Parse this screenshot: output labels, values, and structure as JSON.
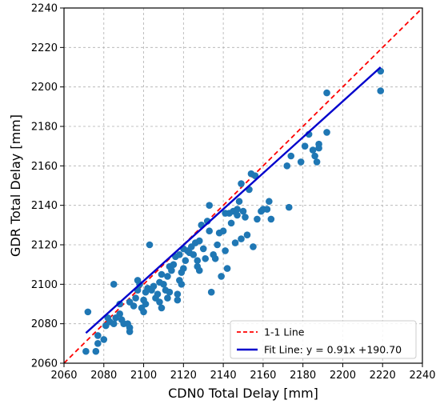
{
  "chart_data": {
    "type": "scatter",
    "title": "",
    "xlabel": "CDN0 Total Delay [mm]",
    "ylabel": "GDR Total Delay [mm]",
    "xlim": [
      2060,
      2240
    ],
    "ylim": [
      2060,
      2240
    ],
    "xticks": [
      2060,
      2080,
      2100,
      2120,
      2140,
      2160,
      2180,
      2200,
      2220,
      2240
    ],
    "yticks": [
      2060,
      2080,
      2100,
      2120,
      2140,
      2160,
      2180,
      2200,
      2220,
      2240
    ],
    "grid": true,
    "legend_position": "bottom-right",
    "colors": {
      "points": "#1f77b4",
      "one_to_one": "#ff0000",
      "fit": "#0000cc"
    },
    "one_to_one_label": "1-1 Line",
    "fit": {
      "label": "Fit Line: y = 0.91x +190.70",
      "slope": 0.91,
      "intercept": 190.7,
      "x_range": [
        2071,
        2219
      ]
    },
    "points": [
      [
        2071,
        2066
      ],
      [
        2072,
        2086
      ],
      [
        2076,
        2066
      ],
      [
        2077,
        2070
      ],
      [
        2077,
        2074
      ],
      [
        2080,
        2072
      ],
      [
        2081,
        2079
      ],
      [
        2082,
        2083
      ],
      [
        2083,
        2081
      ],
      [
        2085,
        2080
      ],
      [
        2085,
        2100
      ],
      [
        2086,
        2083
      ],
      [
        2088,
        2085
      ],
      [
        2088,
        2090
      ],
      [
        2089,
        2082
      ],
      [
        2090,
        2080
      ],
      [
        2092,
        2080
      ],
      [
        2093,
        2078
      ],
      [
        2093,
        2076
      ],
      [
        2093,
        2091
      ],
      [
        2095,
        2089
      ],
      [
        2096,
        2093
      ],
      [
        2097,
        2102
      ],
      [
        2097,
        2097
      ],
      [
        2098,
        2100
      ],
      [
        2099,
        2088
      ],
      [
        2100,
        2086
      ],
      [
        2100,
        2092
      ],
      [
        2101,
        2096
      ],
      [
        2101,
        2090
      ],
      [
        2102,
        2098
      ],
      [
        2103,
        2120
      ],
      [
        2104,
        2097
      ],
      [
        2105,
        2099
      ],
      [
        2106,
        2093
      ],
      [
        2107,
        2095
      ],
      [
        2108,
        2101
      ],
      [
        2108,
        2091
      ],
      [
        2109,
        2088
      ],
      [
        2109,
        2105
      ],
      [
        2110,
        2100
      ],
      [
        2111,
        2097
      ],
      [
        2112,
        2093
      ],
      [
        2112,
        2104
      ],
      [
        2113,
        2096
      ],
      [
        2113,
        2109
      ],
      [
        2114,
        2107
      ],
      [
        2115,
        2110
      ],
      [
        2116,
        2114
      ],
      [
        2117,
        2095
      ],
      [
        2117,
        2092
      ],
      [
        2118,
        2102
      ],
      [
        2118,
        2115
      ],
      [
        2119,
        2100
      ],
      [
        2119,
        2106
      ],
      [
        2120,
        2108
      ],
      [
        2120,
        2118
      ],
      [
        2121,
        2112
      ],
      [
        2122,
        2117
      ],
      [
        2123,
        2116
      ],
      [
        2124,
        2119
      ],
      [
        2125,
        2115
      ],
      [
        2126,
        2121
      ],
      [
        2127,
        2112
      ],
      [
        2127,
        2109
      ],
      [
        2128,
        2122
      ],
      [
        2128,
        2107
      ],
      [
        2129,
        2130
      ],
      [
        2130,
        2118
      ],
      [
        2131,
        2113
      ],
      [
        2132,
        2132
      ],
      [
        2133,
        2127
      ],
      [
        2133,
        2140
      ],
      [
        2134,
        2096
      ],
      [
        2135,
        2115
      ],
      [
        2136,
        2113
      ],
      [
        2137,
        2120
      ],
      [
        2138,
        2126
      ],
      [
        2139,
        2104
      ],
      [
        2140,
        2127
      ],
      [
        2141,
        2136
      ],
      [
        2141,
        2117
      ],
      [
        2142,
        2108
      ],
      [
        2143,
        2136
      ],
      [
        2144,
        2131
      ],
      [
        2145,
        2137
      ],
      [
        2146,
        2121
      ],
      [
        2147,
        2135
      ],
      [
        2147,
        2138
      ],
      [
        2148,
        2142
      ],
      [
        2149,
        2123
      ],
      [
        2149,
        2151
      ],
      [
        2150,
        2137
      ],
      [
        2151,
        2134
      ],
      [
        2152,
        2125
      ],
      [
        2153,
        2148
      ],
      [
        2154,
        2156
      ],
      [
        2155,
        2119
      ],
      [
        2156,
        2155
      ],
      [
        2157,
        2133
      ],
      [
        2159,
        2137
      ],
      [
        2160,
        2138
      ],
      [
        2162,
        2138
      ],
      [
        2163,
        2142
      ],
      [
        2164,
        2133
      ],
      [
        2172,
        2160
      ],
      [
        2173,
        2139
      ],
      [
        2174,
        2165
      ],
      [
        2179,
        2162
      ],
      [
        2181,
        2170
      ],
      [
        2183,
        2176
      ],
      [
        2185,
        2168
      ],
      [
        2186,
        2165
      ],
      [
        2187,
        2162
      ],
      [
        2188,
        2171
      ],
      [
        2188,
        2169
      ],
      [
        2192,
        2177
      ],
      [
        2192,
        2197
      ],
      [
        2219,
        2208
      ],
      [
        2219,
        2198
      ]
    ]
  },
  "legend": {
    "items": [
      {
        "label": "1-1 Line",
        "color": "#ff0000",
        "dash": true
      },
      {
        "label": "Fit Line: y = 0.91x +190.70",
        "color": "#0000cc",
        "dash": false
      }
    ]
  }
}
